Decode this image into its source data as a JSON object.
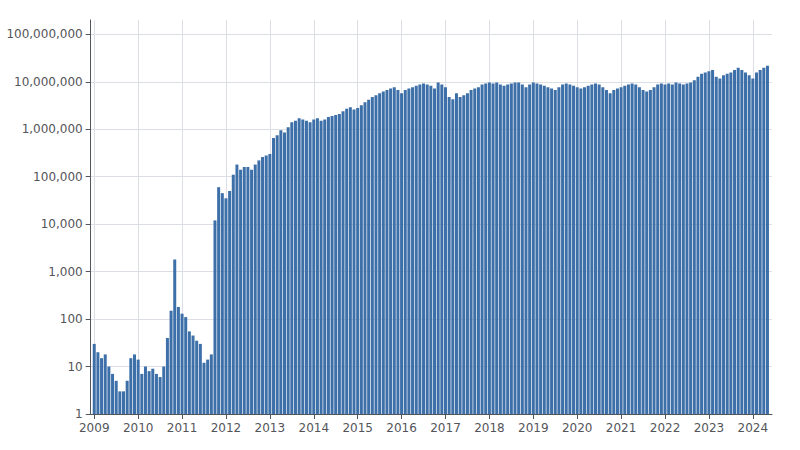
{
  "chart_data": {
    "type": "bar",
    "x": [
      2009,
      2009.0833333333333,
      2009.1666666666667,
      2009.25,
      2009.3333333333333,
      2009.4166666666667,
      2009.5,
      2009.5833333333333,
      2009.6666666666667,
      2009.75,
      2009.8333333333333,
      2009.9166666666667,
      2010,
      2010.0833333333333,
      2010.1666666666667,
      2010.25,
      2010.3333333333333,
      2010.4166666666667,
      2010.5,
      2010.5833333333333,
      2010.6666666666667,
      2010.75,
      2010.8333333333333,
      2010.9166666666667,
      2011,
      2011.0833333333333,
      2011.1666666666667,
      2011.25,
      2011.3333333333333,
      2011.4166666666667,
      2011.5,
      2011.5833333333333,
      2011.6666666666667,
      2011.75,
      2011.8333333333333,
      2011.9166666666667,
      2012,
      2012.0833333333333,
      2012.1666666666667,
      2012.25,
      2012.3333333333333,
      2012.4166666666667,
      2012.5,
      2012.5833333333333,
      2012.6666666666667,
      2012.75,
      2012.8333333333333,
      2012.9166666666667,
      2013,
      2013.0833333333333,
      2013.1666666666667,
      2013.25,
      2013.3333333333333,
      2013.4166666666667,
      2013.5,
      2013.5833333333333,
      2013.6666666666667,
      2013.75,
      2013.8333333333333,
      2013.9166666666667,
      2014,
      2014.0833333333333,
      2014.1666666666667,
      2014.25,
      2014.3333333333333,
      2014.4166666666667,
      2014.5,
      2014.5833333333333,
      2014.6666666666667,
      2014.75,
      2014.8333333333333,
      2014.9166666666667,
      2015,
      2015.0833333333333,
      2015.1666666666667,
      2015.25,
      2015.3333333333333,
      2015.4166666666667,
      2015.5,
      2015.5833333333333,
      2015.6666666666667,
      2015.75,
      2015.8333333333333,
      2015.9166666666667,
      2016,
      2016.0833333333333,
      2016.1666666666667,
      2016.25,
      2016.3333333333333,
      2016.4166666666667,
      2016.5,
      2016.5833333333333,
      2016.6666666666667,
      2016.75,
      2016.8333333333333,
      2016.9166666666667,
      2017,
      2017.0833333333333,
      2017.1666666666667,
      2017.25,
      2017.3333333333333,
      2017.4166666666667,
      2017.5,
      2017.5833333333333,
      2017.6666666666667,
      2017.75,
      2017.8333333333333,
      2017.9166666666667,
      2018,
      2018.0833333333333,
      2018.1666666666667,
      2018.25,
      2018.3333333333333,
      2018.4166666666667,
      2018.5,
      2018.5833333333333,
      2018.6666666666667,
      2018.75,
      2018.8333333333333,
      2018.9166666666667,
      2019,
      2019.0833333333333,
      2019.1666666666667,
      2019.25,
      2019.3333333333333,
      2019.4166666666667,
      2019.5,
      2019.5833333333333,
      2019.6666666666667,
      2019.75,
      2019.8333333333333,
      2019.9166666666667,
      2020,
      2020.0833333333333,
      2020.1666666666667,
      2020.25,
      2020.3333333333333,
      2020.4166666666667,
      2020.5,
      2020.5833333333333,
      2020.6666666666667,
      2020.75,
      2020.8333333333333,
      2020.9166666666667,
      2021,
      2021.0833333333333,
      2021.1666666666667,
      2021.25,
      2021.3333333333333,
      2021.4166666666667,
      2021.5,
      2021.5833333333333,
      2021.6666666666667,
      2021.75,
      2021.8333333333333,
      2021.9166666666667,
      2022,
      2022.0833333333333,
      2022.1666666666667,
      2022.25,
      2022.3333333333333,
      2022.4166666666667,
      2022.5,
      2022.5833333333333,
      2022.6666666666667,
      2022.75,
      2022.8333333333333,
      2022.9166666666667,
      2023,
      2023.0833333333333,
      2023.1666666666667,
      2023.25,
      2023.3333333333333,
      2023.4166666666667,
      2023.5,
      2023.5833333333333,
      2023.6666666666667,
      2023.75,
      2023.8333333333333,
      2023.9166666666667,
      2024,
      2024.0833333333333,
      2024.1666666666667,
      2024.25,
      2024.3333333333333
    ],
    "values": [
      30,
      20,
      15,
      18,
      10,
      7,
      5,
      3,
      3,
      5,
      15,
      18,
      14,
      7,
      10,
      8,
      9,
      7,
      6,
      10,
      40,
      150,
      1800,
      180,
      130,
      110,
      55,
      45,
      35,
      30,
      12,
      14,
      18,
      12000,
      60000,
      45000,
      35000,
      50000,
      110000,
      180000,
      140000,
      160000,
      160000,
      140000,
      180000,
      220000,
      260000,
      280000,
      300000,
      650000,
      750000,
      950000,
      850000,
      1100000,
      1400000,
      1500000,
      1700000,
      1600000,
      1500000,
      1400000,
      1600000,
      1700000,
      1500000,
      1600000,
      1800000,
      1900000,
      2000000,
      2100000,
      2400000,
      2700000,
      2900000,
      2600000,
      2800000,
      3200000,
      3700000,
      4200000,
      4800000,
      5200000,
      5700000,
      6200000,
      6700000,
      7200000,
      7700000,
      6700000,
      5700000,
      6700000,
      7200000,
      7700000,
      8200000,
      8700000,
      9200000,
      8700000,
      8200000,
      7200000,
      9700000,
      8700000,
      7700000,
      4800000,
      4300000,
      5700000,
      4800000,
      5200000,
      5700000,
      6700000,
      7200000,
      7700000,
      8700000,
      9200000,
      9700000,
      9200000,
      9700000,
      8700000,
      8200000,
      8700000,
      9200000,
      9700000,
      9700000,
      8700000,
      7700000,
      8700000,
      9700000,
      9200000,
      8700000,
      8200000,
      7700000,
      7200000,
      6700000,
      7700000,
      8700000,
      9200000,
      8700000,
      8200000,
      7700000,
      7200000,
      7700000,
      8200000,
      8700000,
      9200000,
      8700000,
      7700000,
      6700000,
      5700000,
      6700000,
      7200000,
      7700000,
      8200000,
      8700000,
      9200000,
      8700000,
      7700000,
      6700000,
      6200000,
      6700000,
      7700000,
      8700000,
      9200000,
      8700000,
      9200000,
      8700000,
      9700000,
      9200000,
      8700000,
      9200000,
      9700000,
      10700000,
      12700000,
      14700000,
      15700000,
      16700000,
      17700000,
      12700000,
      11700000,
      13700000,
      14700000,
      15700000,
      17700000,
      19700000,
      17700000,
      15700000,
      13700000,
      11700000,
      15700000,
      17700000,
      19700000,
      21700000
    ],
    "color": "#3d6fa8",
    "log": "y",
    "xlim": [
      2008.92,
      2024.4366666666667
    ],
    "xticks": [
      2009,
      2010,
      2011,
      2012,
      2013,
      2014,
      2015,
      2016,
      2017,
      2018,
      2019,
      2020,
      2021,
      2022,
      2023,
      2024
    ],
    "ylim": [
      1,
      200000000
    ],
    "yticks": [
      1,
      10,
      100,
      {
        "value": 1000,
        "label": "1,000"
      },
      {
        "value": 10000,
        "label": "10,000"
      },
      {
        "value": 100000,
        "label": "100,000"
      },
      {
        "value": 1000000,
        "label": "1,000,000"
      },
      {
        "value": 10000000,
        "label": "10,000,000"
      },
      {
        "value": 100000000,
        "label": "100,000,000"
      }
    ],
    "grid": true
  }
}
